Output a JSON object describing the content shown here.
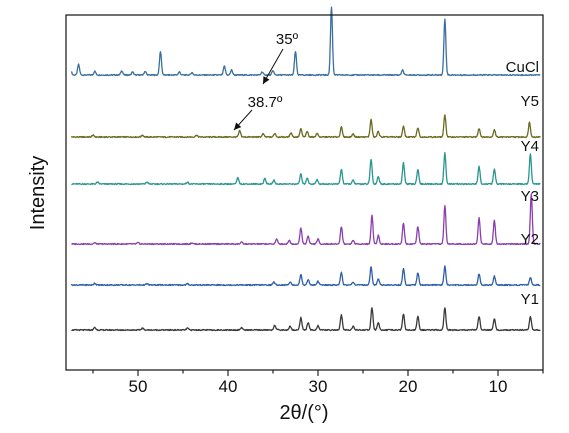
{
  "chart_data": {
    "type": "line",
    "xlabel": "2θ/(°)",
    "ylabel": "Intensity",
    "x_reversed": true,
    "xlim": [
      58,
      5
    ],
    "xticks": [
      50,
      40,
      30,
      20,
      10
    ],
    "y_ticks_shown": false,
    "grid": false,
    "series": [
      {
        "name": "CuCl",
        "color": "#3a6fa0",
        "peaks": [
          [
            57.5,
            0.1
          ],
          [
            56.6,
            0.17
          ],
          [
            54.8,
            0.06
          ],
          [
            51.8,
            0.07
          ],
          [
            50.6,
            0.05
          ],
          [
            49.2,
            0.06
          ],
          [
            47.5,
            0.38
          ],
          [
            45.4,
            0.05
          ],
          [
            44.0,
            0.04
          ],
          [
            40.4,
            0.14
          ],
          [
            39.6,
            0.08
          ],
          [
            36.2,
            0.05
          ],
          [
            35.0,
            0.07
          ],
          [
            32.5,
            0.38
          ],
          [
            28.5,
            1.1
          ],
          [
            20.6,
            0.08
          ],
          [
            15.9,
            0.9
          ]
        ]
      },
      {
        "name": "Y5",
        "color": "#6b6b20",
        "peaks": [
          [
            55.0,
            0.03
          ],
          [
            49.5,
            0.03
          ],
          [
            43.5,
            0.03
          ],
          [
            38.7,
            0.1
          ],
          [
            36.1,
            0.05
          ],
          [
            34.8,
            0.06
          ],
          [
            33.0,
            0.07
          ],
          [
            31.9,
            0.13
          ],
          [
            31.2,
            0.09
          ],
          [
            30.1,
            0.06
          ],
          [
            27.4,
            0.16
          ],
          [
            26.1,
            0.05
          ],
          [
            24.1,
            0.28
          ],
          [
            23.3,
            0.09
          ],
          [
            20.5,
            0.17
          ],
          [
            18.9,
            0.15
          ],
          [
            15.9,
            0.36
          ],
          [
            12.1,
            0.14
          ],
          [
            10.4,
            0.12
          ],
          [
            6.5,
            0.24
          ]
        ]
      },
      {
        "name": "Y4",
        "color": "#2a9690",
        "peaks": [
          [
            54.5,
            0.03
          ],
          [
            49.0,
            0.03
          ],
          [
            44.5,
            0.03
          ],
          [
            38.9,
            0.1
          ],
          [
            35.9,
            0.09
          ],
          [
            34.9,
            0.06
          ],
          [
            31.9,
            0.16
          ],
          [
            31.2,
            0.1
          ],
          [
            30.1,
            0.07
          ],
          [
            27.4,
            0.24
          ],
          [
            26.1,
            0.06
          ],
          [
            24.1,
            0.4
          ],
          [
            23.3,
            0.12
          ],
          [
            20.5,
            0.34
          ],
          [
            18.9,
            0.24
          ],
          [
            15.9,
            0.5
          ],
          [
            12.1,
            0.28
          ],
          [
            10.4,
            0.24
          ],
          [
            6.4,
            0.48
          ]
        ]
      },
      {
        "name": "Y3",
        "color": "#8a3fae",
        "peaks": [
          [
            54.8,
            0.02
          ],
          [
            50.0,
            0.02
          ],
          [
            44.0,
            0.02
          ],
          [
            38.5,
            0.03
          ],
          [
            34.6,
            0.08
          ],
          [
            33.2,
            0.06
          ],
          [
            31.9,
            0.26
          ],
          [
            31.1,
            0.13
          ],
          [
            30.0,
            0.08
          ],
          [
            27.4,
            0.28
          ],
          [
            26.1,
            0.06
          ],
          [
            24.0,
            0.46
          ],
          [
            23.3,
            0.14
          ],
          [
            20.5,
            0.34
          ],
          [
            18.9,
            0.28
          ],
          [
            15.9,
            0.62
          ],
          [
            12.1,
            0.42
          ],
          [
            10.4,
            0.38
          ],
          [
            6.3,
            0.8
          ]
        ]
      },
      {
        "name": "Y2",
        "color": "#2f5fa8",
        "peaks": [
          [
            54.8,
            0.03
          ],
          [
            49.0,
            0.02
          ],
          [
            44.5,
            0.02
          ],
          [
            34.9,
            0.05
          ],
          [
            33.1,
            0.05
          ],
          [
            31.9,
            0.17
          ],
          [
            31.1,
            0.09
          ],
          [
            30.0,
            0.06
          ],
          [
            27.4,
            0.2
          ],
          [
            26.1,
            0.05
          ],
          [
            24.1,
            0.3
          ],
          [
            23.3,
            0.1
          ],
          [
            20.5,
            0.26
          ],
          [
            18.9,
            0.2
          ],
          [
            15.9,
            0.3
          ],
          [
            12.1,
            0.18
          ],
          [
            10.4,
            0.14
          ],
          [
            6.4,
            0.12
          ]
        ]
      },
      {
        "name": "Y1",
        "color": "#3a3a3a",
        "peaks": [
          [
            54.8,
            0.04
          ],
          [
            49.5,
            0.03
          ],
          [
            44.5,
            0.03
          ],
          [
            38.5,
            0.04
          ],
          [
            34.8,
            0.08
          ],
          [
            33.1,
            0.06
          ],
          [
            31.9,
            0.2
          ],
          [
            31.1,
            0.12
          ],
          [
            30.0,
            0.07
          ],
          [
            27.4,
            0.24
          ],
          [
            26.1,
            0.06
          ],
          [
            24.0,
            0.36
          ],
          [
            23.3,
            0.12
          ],
          [
            20.5,
            0.26
          ],
          [
            18.9,
            0.22
          ],
          [
            15.9,
            0.36
          ],
          [
            12.1,
            0.22
          ],
          [
            10.4,
            0.18
          ],
          [
            6.4,
            0.22
          ]
        ]
      }
    ],
    "annotations": [
      {
        "text": "35º",
        "x": 35.0,
        "series": "CuCl"
      },
      {
        "text": "38.7º",
        "x": 38.7,
        "series": "Y5"
      }
    ]
  }
}
